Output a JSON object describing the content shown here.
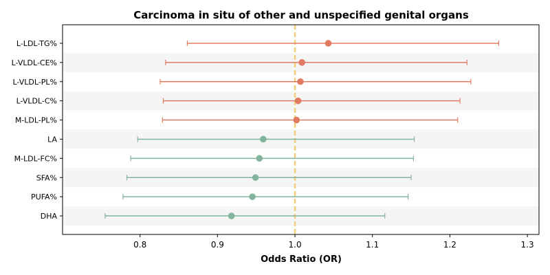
{
  "chart_data": {
    "type": "forest",
    "title": "Carcinoma in situ of other and unspecified genital organs",
    "xlabel": "Odds Ratio (OR)",
    "ylabel": "",
    "xlim": [
      0.7,
      1.315
    ],
    "xticks": [
      0.8,
      0.9,
      1.0,
      1.1,
      1.2,
      1.3
    ],
    "xtick_labels": [
      "0.8",
      "0.9",
      "1.0",
      "1.1",
      "1.2",
      "1.3"
    ],
    "reference_line": 1.0,
    "grid": false,
    "legend": "none",
    "colors": {
      "positive": "#e07b62",
      "negative": "#82b49b",
      "reference": "#f2cd7d",
      "band": "#f5f5f5"
    },
    "rows": [
      {
        "label": "L-LDL-TG%",
        "or": 1.043,
        "lower": 0.861,
        "upper": 1.263,
        "group": "positive"
      },
      {
        "label": "L-VLDL-CE%",
        "or": 1.009,
        "lower": 0.833,
        "upper": 1.222,
        "group": "positive"
      },
      {
        "label": "L-VLDL-PL%",
        "or": 1.007,
        "lower": 0.826,
        "upper": 1.227,
        "group": "positive"
      },
      {
        "label": "L-VLDL-C%",
        "or": 1.004,
        "lower": 0.83,
        "upper": 1.213,
        "group": "positive"
      },
      {
        "label": "M-LDL-PL%",
        "or": 1.002,
        "lower": 0.829,
        "upper": 1.21,
        "group": "positive"
      },
      {
        "label": "LA",
        "or": 0.959,
        "lower": 0.797,
        "upper": 1.154,
        "group": "negative"
      },
      {
        "label": "M-LDL-FC%",
        "or": 0.954,
        "lower": 0.788,
        "upper": 1.153,
        "group": "negative"
      },
      {
        "label": "SFA%",
        "or": 0.949,
        "lower": 0.783,
        "upper": 1.15,
        "group": "negative"
      },
      {
        "label": "PUFA%",
        "or": 0.945,
        "lower": 0.778,
        "upper": 1.146,
        "group": "negative"
      },
      {
        "label": "DHA",
        "or": 0.918,
        "lower": 0.755,
        "upper": 1.116,
        "group": "negative"
      }
    ]
  }
}
